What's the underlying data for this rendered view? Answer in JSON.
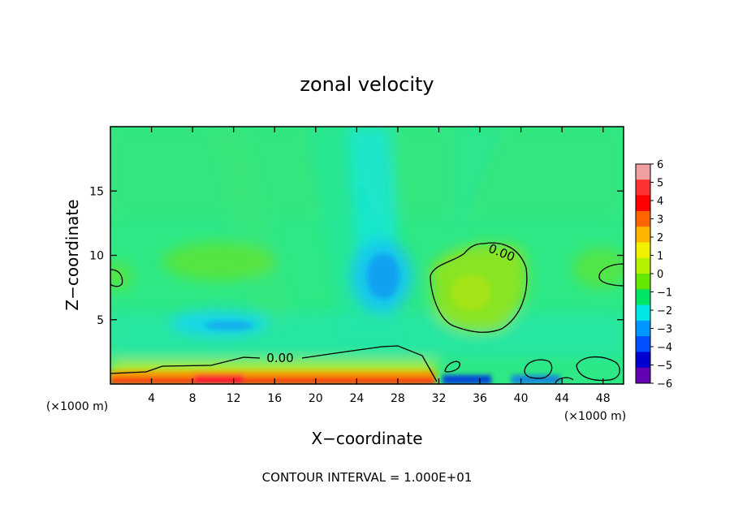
{
  "chart_data": {
    "type": "heatmap",
    "title": "zonal velocity",
    "xlabel": "X−coordinate",
    "ylabel": "Z−coordinate",
    "x_unit_left": "(×1000 m)",
    "x_unit_right": "(×1000 m)",
    "xlim": [
      0,
      50
    ],
    "ylim": [
      0,
      20
    ],
    "x_ticks": [
      4,
      8,
      12,
      16,
      20,
      24,
      28,
      32,
      36,
      40,
      44,
      48
    ],
    "y_ticks": [
      5,
      10,
      15
    ],
    "footer": "CONTOUR INTERVAL = 1.000E+01",
    "contour_label": "0.00",
    "colorbar": {
      "ticks": [
        6,
        5,
        4,
        3,
        2,
        1,
        0,
        -1,
        -2,
        -3,
        -4,
        -5,
        -6
      ],
      "tick_labels": [
        "6",
        "5",
        "4",
        "3",
        "2",
        "1",
        "0",
        "−1",
        "−2",
        "−3",
        "−4",
        "−5",
        "−6"
      ],
      "colors": [
        "#f0a0a0",
        "#ff3030",
        "#ff0000",
        "#ff6400",
        "#ffb400",
        "#f0f000",
        "#b4f000",
        "#64e600",
        "#00e664",
        "#00e6e6",
        "#0096ff",
        "#0050ff",
        "#0000d2",
        "#6400b4"
      ]
    },
    "features": [
      {
        "label": "positive region centre-right",
        "x": 34,
        "z": 7.5,
        "value": 1.0
      },
      {
        "label": "negative core upper-centre",
        "x": 27,
        "z": 8.5,
        "value": -3.0
      },
      {
        "label": "negative core left",
        "x": 11,
        "z": 4.5,
        "value": -2.8
      },
      {
        "label": "strong positive near surface",
        "x": 16,
        "z": 0.3,
        "value": 5.0
      },
      {
        "label": "strong negative near surface",
        "x": 35,
        "z": 0.3,
        "value": -5.0
      }
    ]
  }
}
